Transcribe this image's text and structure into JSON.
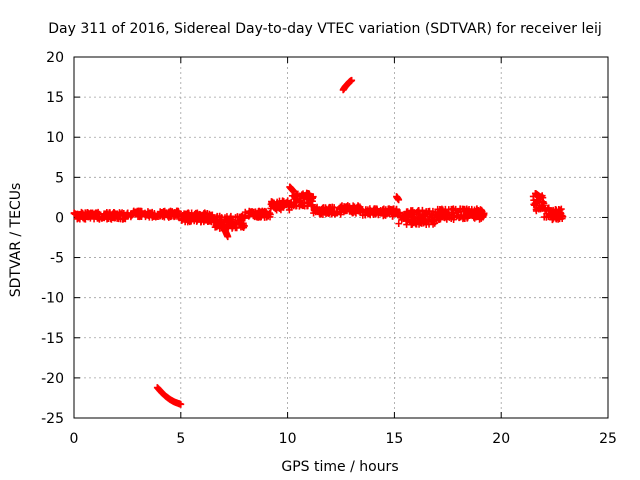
{
  "chart_data": {
    "type": "scatter",
    "title": "Day 311 of 2016, Sidereal Day-to-day VTEC variation (SDTVAR) for receiver leij",
    "xlabel": "GPS time / hours",
    "ylabel": "SDTVAR / TECUs",
    "xlim": [
      0,
      25
    ],
    "ylim": [
      -25,
      20
    ],
    "x_ticks": [
      "0",
      "5",
      "10",
      "15",
      "20",
      "25"
    ],
    "y_ticks": [
      "20",
      "15",
      "10",
      "5",
      "0",
      "-5",
      "-10",
      "-15",
      "-20",
      "-25"
    ],
    "grid": true,
    "marker": "cross",
    "color": "#ff0000",
    "segments": [
      {
        "x_start": 0.0,
        "x_end": 2.5,
        "y_center": 0.2,
        "spread": 0.9
      },
      {
        "x_start": 2.5,
        "x_end": 4.9,
        "y_center": 0.4,
        "spread": 0.8
      },
      {
        "x_start": 5.0,
        "x_end": 6.5,
        "y_center": 0.0,
        "spread": 1.2
      },
      {
        "x_start": 6.5,
        "x_end": 8.0,
        "y_center": -0.6,
        "spread": 1.6
      },
      {
        "x_start": 8.0,
        "x_end": 9.2,
        "y_center": 0.4,
        "spread": 0.8
      },
      {
        "x_start": 9.2,
        "x_end": 10.2,
        "y_center": 1.5,
        "spread": 1.2
      },
      {
        "x_start": 10.2,
        "x_end": 11.2,
        "y_center": 2.2,
        "spread": 1.8
      },
      {
        "x_start": 11.2,
        "x_end": 12.5,
        "y_center": 0.8,
        "spread": 1.0
      },
      {
        "x_start": 12.5,
        "x_end": 13.5,
        "y_center": 1.0,
        "spread": 1.0
      },
      {
        "x_start": 13.5,
        "x_end": 15.2,
        "y_center": 0.6,
        "spread": 1.0
      },
      {
        "x_start": 15.2,
        "x_end": 17.0,
        "y_center": 0.0,
        "spread": 1.8
      },
      {
        "x_start": 17.0,
        "x_end": 19.2,
        "y_center": 0.4,
        "spread": 1.4
      },
      {
        "x_start": 21.5,
        "x_end": 22.0,
        "y_center": 1.8,
        "spread": 2.0
      },
      {
        "x_start": 22.0,
        "x_end": 22.9,
        "y_center": 0.5,
        "spread": 1.6
      }
    ],
    "outlier_series": [
      {
        "x": [
          3.9,
          4.1,
          4.3,
          4.5,
          4.7,
          4.9,
          5.0
        ],
        "y": [
          -21.2,
          -21.8,
          -22.3,
          -22.7,
          -23.0,
          -23.2,
          -23.3
        ]
      },
      {
        "x": [
          12.6,
          12.7,
          12.8,
          12.9,
          13.0
        ],
        "y": [
          15.9,
          16.3,
          16.6,
          16.9,
          17.1
        ]
      },
      {
        "x": [
          7.2,
          7.1,
          7.0
        ],
        "y": [
          -2.4,
          -1.8,
          -1.2
        ]
      },
      {
        "x": [
          10.1,
          10.2,
          10.3
        ],
        "y": [
          3.8,
          3.5,
          3.2
        ]
      },
      {
        "x": [
          21.6,
          21.7,
          21.8
        ],
        "y": [
          3.0,
          2.8,
          2.6
        ]
      },
      {
        "x": [
          15.1,
          15.2
        ],
        "y": [
          2.6,
          2.2
        ]
      }
    ]
  }
}
